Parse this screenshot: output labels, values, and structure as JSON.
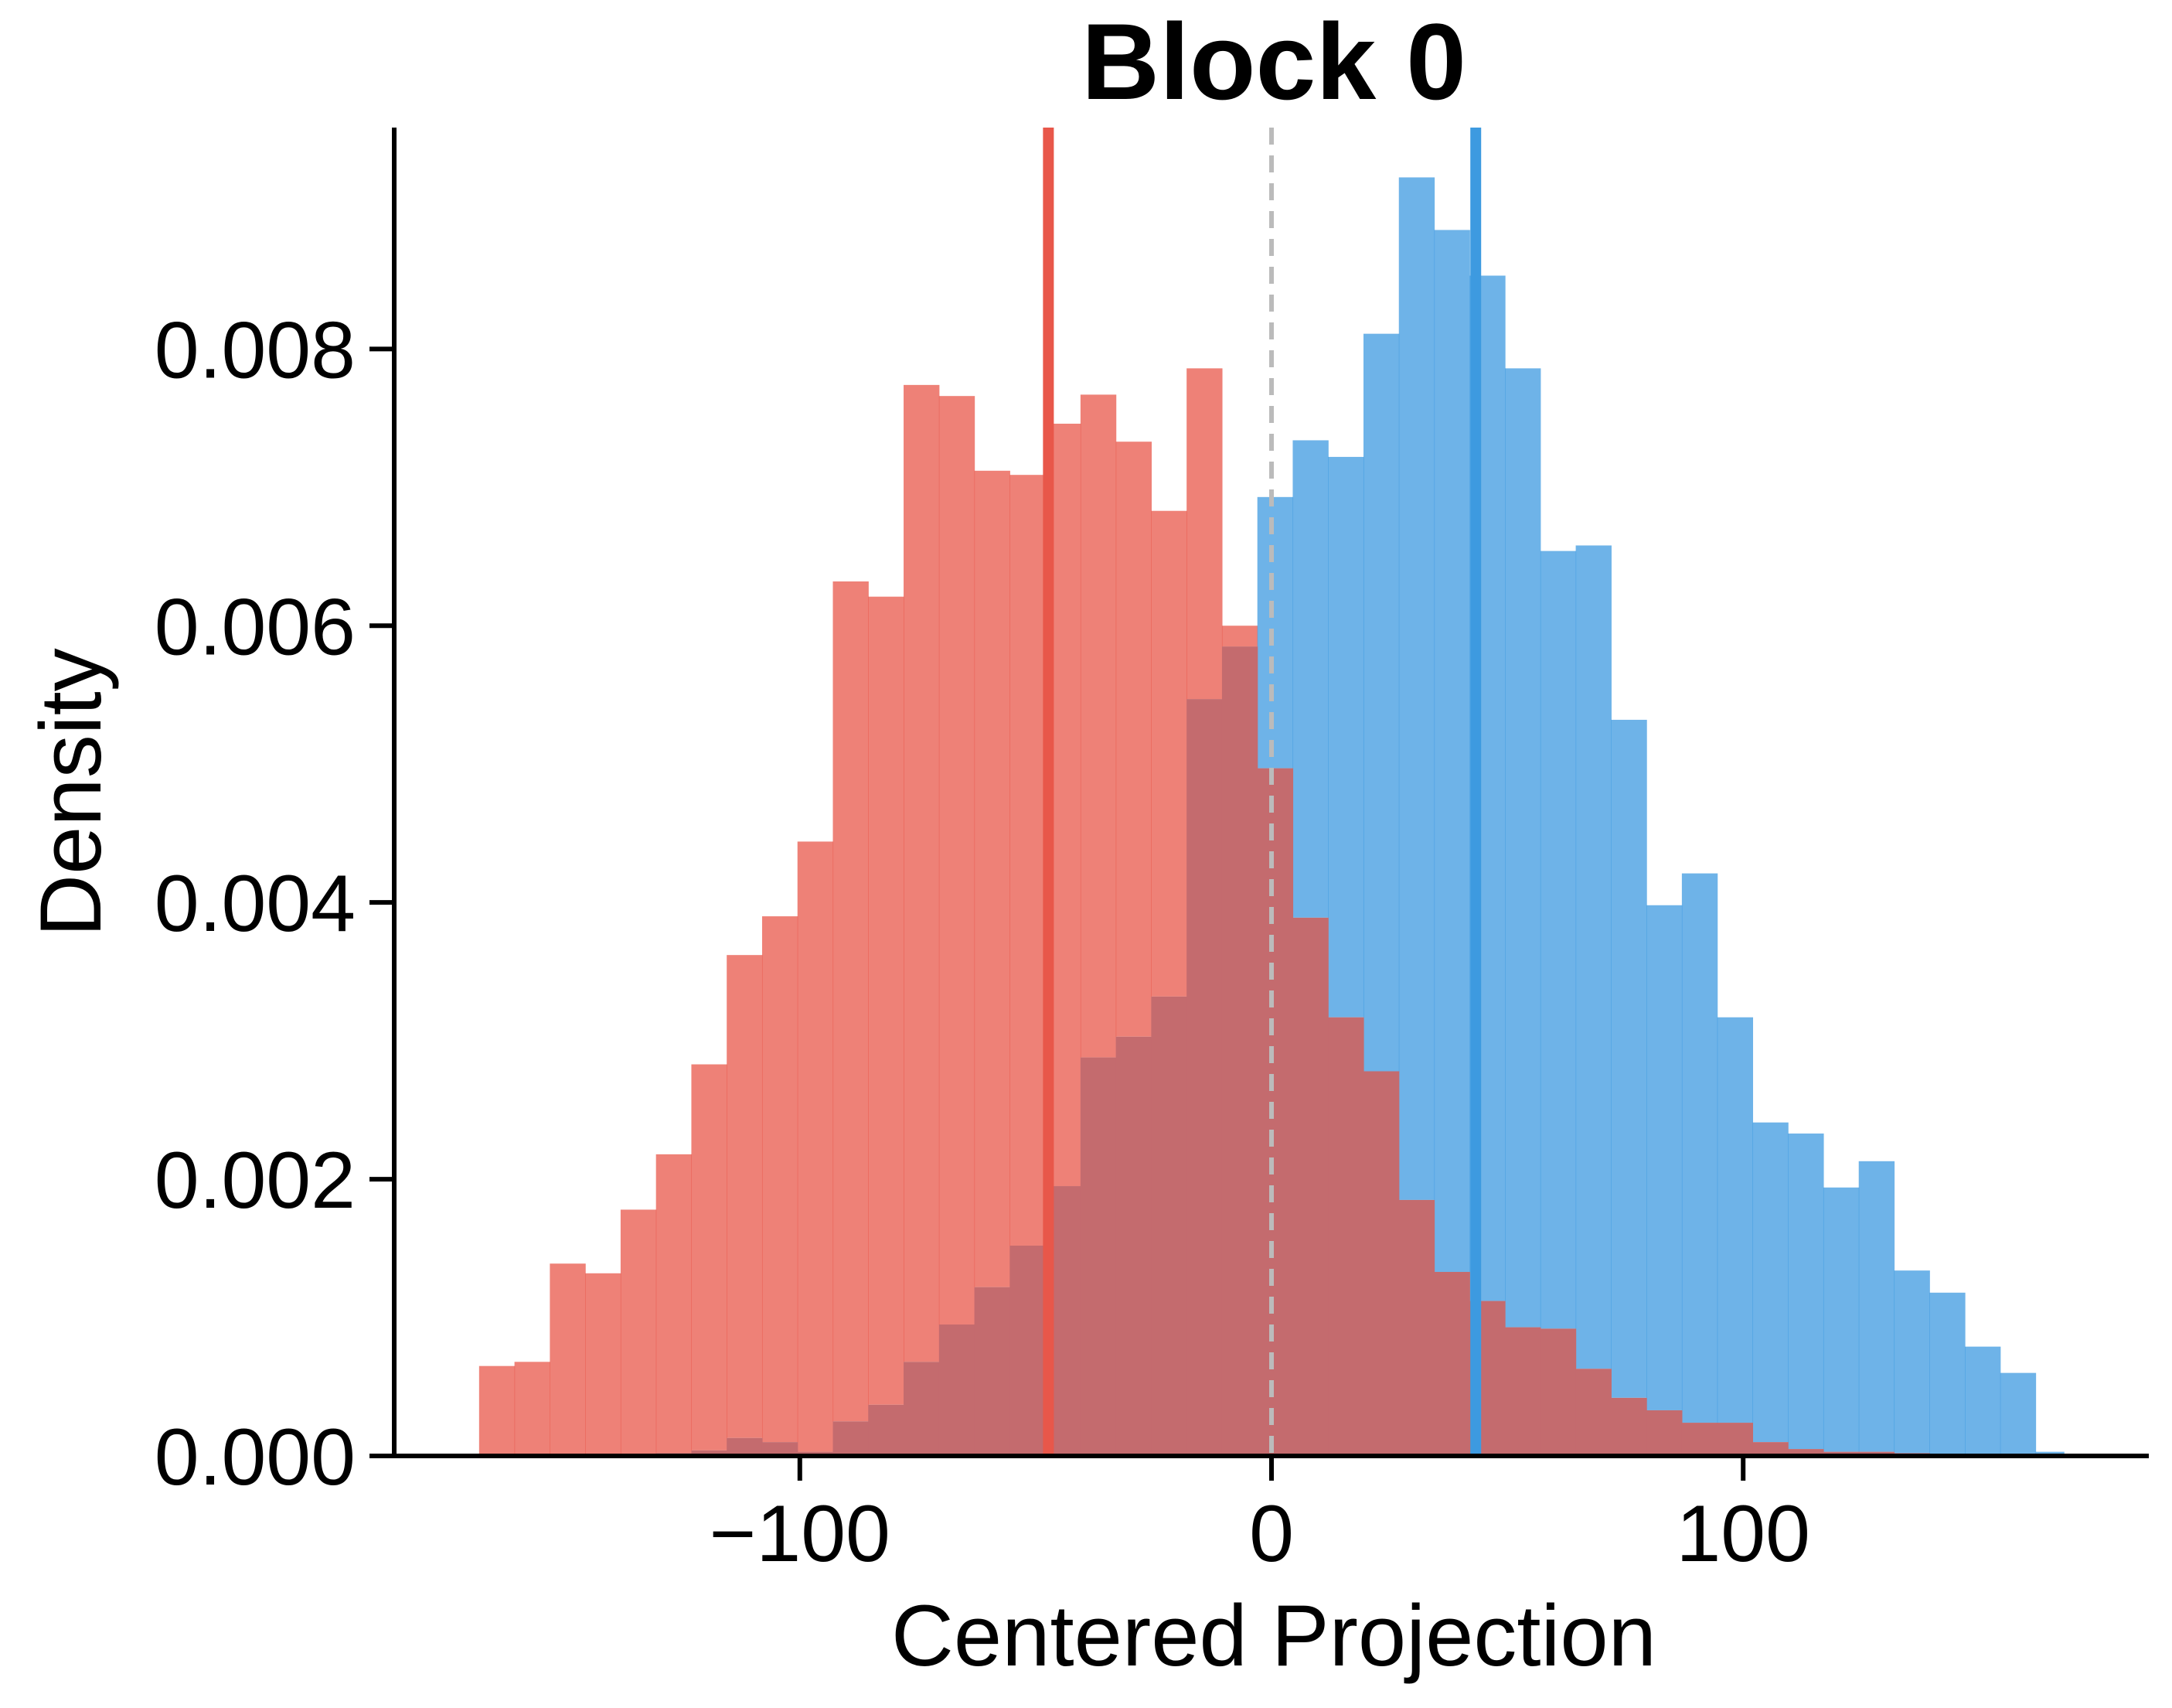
{
  "chart_data": {
    "type": "bar",
    "title": "Block 0",
    "xlabel": "Centered Projection",
    "ylabel": "Density",
    "xlim": [
      -186,
      186
    ],
    "ylim": [
      0,
      0.0096
    ],
    "xticks": [
      {
        "value": -100,
        "label": "−100"
      },
      {
        "value": 0,
        "label": "0"
      },
      {
        "value": 100,
        "label": "100"
      }
    ],
    "yticks": [
      {
        "value": 0.0,
        "label": "0.000"
      },
      {
        "value": 0.002,
        "label": "0.002"
      },
      {
        "value": 0.004,
        "label": "0.004"
      },
      {
        "value": 0.006,
        "label": "0.006"
      },
      {
        "value": 0.008,
        "label": "0.008"
      }
    ],
    "grid": false,
    "colors": {
      "red_series": "#e8574a",
      "blue_series": "#3d9ae0",
      "overlap": "#c46b6e",
      "zero_line": "#bbbbbb",
      "axis": "#000000"
    },
    "bin_edges": [
      -168.0,
      -160.5,
      -153.0,
      -145.5,
      -138.0,
      -130.5,
      -123.0,
      -115.5,
      -108.0,
      -100.5,
      -93.0,
      -85.5,
      -78.0,
      -70.5,
      -63.0,
      -55.5,
      -48.0,
      -40.5,
      -33.0,
      -25.5,
      -18.0,
      -10.5,
      -3.0,
      4.5,
      12.0,
      19.5,
      27.0,
      34.5,
      42.0,
      49.5,
      57.0,
      64.5,
      72.0,
      79.5,
      87.0,
      94.5,
      102.0,
      109.5,
      117.0,
      124.5,
      132.0,
      139.5,
      147.0,
      154.5,
      162.0,
      168.0
    ],
    "series": [
      {
        "values": [
          0.00065,
          0.00068,
          0.00139,
          0.00132,
          0.00178,
          0.00218,
          0.00283,
          0.00362,
          0.0039,
          0.00444,
          0.00632,
          0.00621,
          0.00774,
          0.00766,
          0.00712,
          0.00709,
          0.00746,
          0.00767,
          0.00733,
          0.00683,
          0.00786,
          0.006,
          0.00497,
          0.00389,
          0.00317,
          0.00278,
          0.00185,
          0.00133,
          0.00112,
          0.00093,
          0.00092,
          0.00063,
          0.00042,
          0.00033,
          0.00024,
          0.00024,
          0.0001,
          5e-05,
          3e-05,
          3e-05,
          2e-05,
          1e-05,
          0,
          0,
          0
        ]
      },
      {
        "values": [
          0,
          1e-05,
          0,
          1e-05,
          0,
          2e-05,
          4e-05,
          0.00013,
          0.0001,
          3e-05,
          0.00025,
          0.00037,
          0.00068,
          0.00095,
          0.00122,
          0.00152,
          0.00195,
          0.00288,
          0.00303,
          0.00332,
          0.00547,
          0.00585,
          0.00693,
          0.00734,
          0.00722,
          0.00811,
          0.00924,
          0.00886,
          0.00853,
          0.00786,
          0.00654,
          0.00658,
          0.00532,
          0.00398,
          0.00421,
          0.00317,
          0.00241,
          0.00233,
          0.00194,
          0.00213,
          0.00134,
          0.00118,
          0.00079,
          0.0006,
          3e-05
        ]
      }
    ],
    "vlines": [
      {
        "x": -47.3,
        "color": "#e8574a",
        "style": "solid"
      },
      {
        "x": 0,
        "color": "#bbbbbb",
        "style": "dashed"
      },
      {
        "x": 43.3,
        "color": "#3d9ae0",
        "style": "solid"
      }
    ]
  }
}
